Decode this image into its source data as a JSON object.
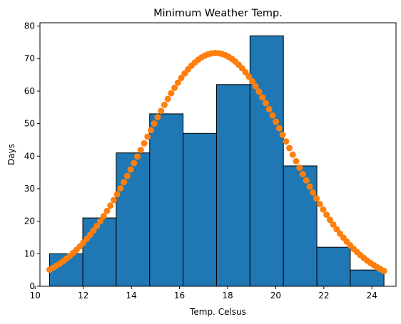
{
  "chart_data": {
    "type": "bar",
    "title": "Minimum Weather Temp.",
    "xlabel": "Temp. Celsus",
    "ylabel": "Days",
    "xlim": [
      10.2,
      25.0
    ],
    "ylim": [
      0,
      81
    ],
    "xticks": [
      10,
      12,
      14,
      16,
      18,
      20,
      22,
      24
    ],
    "yticks": [
      0,
      10,
      20,
      30,
      40,
      50,
      60,
      70,
      80
    ],
    "grid": false,
    "bins": [
      {
        "x0": 10.6,
        "x1": 11.98,
        "value": 10
      },
      {
        "x0": 11.98,
        "x1": 13.37,
        "value": 21
      },
      {
        "x0": 13.37,
        "x1": 14.76,
        "value": 41
      },
      {
        "x0": 14.76,
        "x1": 16.15,
        "value": 53
      },
      {
        "x0": 16.15,
        "x1": 17.54,
        "value": 47
      },
      {
        "x0": 17.54,
        "x1": 18.93,
        "value": 62
      },
      {
        "x0": 18.93,
        "x1": 20.32,
        "value": 77
      },
      {
        "x0": 20.32,
        "x1": 21.71,
        "value": 37
      },
      {
        "x0": 21.71,
        "x1": 23.1,
        "value": 12
      },
      {
        "x0": 23.1,
        "x1": 24.5,
        "value": 5
      }
    ],
    "curve": {
      "type": "scatter",
      "x_start": 10.6,
      "x_end": 24.5,
      "count": 100,
      "peak_x": 17.5,
      "peak_y": 71.7,
      "std": 3.0
    },
    "colors": {
      "bar": "#1f77b4",
      "bar_edge": "#000000",
      "curve": "#ff7f0e"
    }
  }
}
